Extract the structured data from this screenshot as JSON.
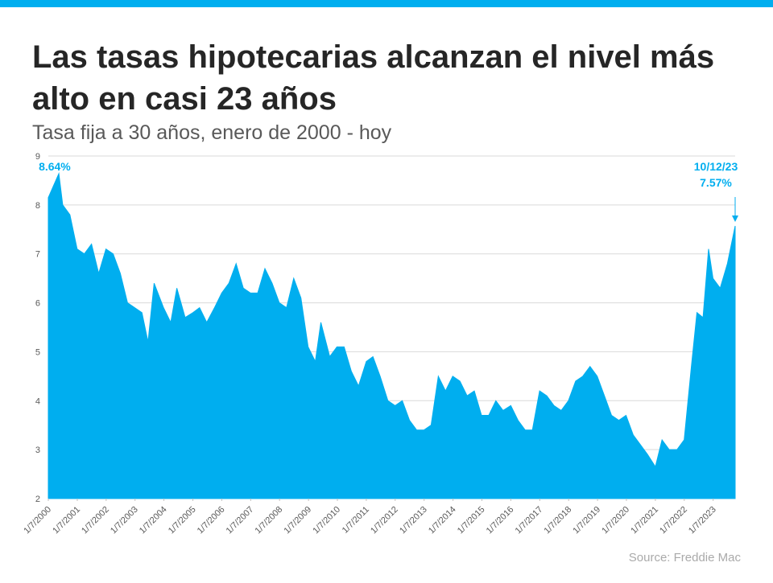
{
  "chart_data": {
    "type": "area",
    "title": "Las tasas hipotecarias alcanzan el nivel más alto en casi 23 años",
    "subtitle": "Tasa fija a 30 años, enero de 2000 - hoy",
    "source": "Source: Freddie Mac",
    "color": "#00aeef",
    "grid": true,
    "x": [
      "1/7/2000",
      "5/19/2000",
      "7/7/2000",
      "10/6/2000",
      "1/5/2001",
      "4/6/2001",
      "7/6/2001",
      "10/5/2001",
      "1/4/2002",
      "4/5/2002",
      "7/5/2002",
      "10/4/2002",
      "1/3/2003",
      "4/4/2003",
      "6/20/2003",
      "9/5/2003",
      "1/2/2004",
      "4/2/2004",
      "6/18/2004",
      "10/1/2004",
      "1/7/2005",
      "4/1/2005",
      "7/1/2005",
      "10/7/2005",
      "1/6/2006",
      "4/7/2006",
      "7/7/2006",
      "10/6/2006",
      "1/5/2007",
      "4/6/2007",
      "7/6/2007",
      "10/5/2007",
      "1/4/2008",
      "4/4/2008",
      "7/4/2008",
      "10/3/2008",
      "1/2/2009",
      "4/3/2009",
      "6/12/2009",
      "10/2/2009",
      "1/1/2010",
      "4/2/2010",
      "7/2/2010",
      "10/1/2010",
      "1/7/2011",
      "4/1/2011",
      "7/1/2011",
      "10/7/2011",
      "1/6/2012",
      "4/6/2012",
      "7/6/2012",
      "10/5/2012",
      "1/4/2013",
      "4/5/2013",
      "7/5/2013",
      "10/4/2013",
      "1/3/2014",
      "4/4/2014",
      "7/4/2014",
      "10/3/2014",
      "1/2/2015",
      "4/3/2015",
      "7/2/2015",
      "10/1/2015",
      "1/7/2016",
      "4/7/2016",
      "7/7/2016",
      "10/6/2016",
      "1/5/2017",
      "4/6/2017",
      "7/6/2017",
      "10/5/2017",
      "1/4/2018",
      "4/5/2018",
      "7/5/2018",
      "10/4/2018",
      "1/3/2019",
      "4/4/2019",
      "7/3/2019",
      "10/3/2019",
      "1/2/2020",
      "4/2/2020",
      "7/2/2020",
      "10/1/2020",
      "1/7/2021",
      "4/1/2021",
      "7/1/2021",
      "10/7/2021",
      "1/6/2022",
      "4/7/2022",
      "6/16/2022",
      "9/1/2022",
      "11/10/2022",
      "1/5/2023",
      "4/6/2023",
      "7/6/2023",
      "10/12/2023"
    ],
    "values": [
      8.15,
      8.64,
      8.0,
      7.8,
      7.1,
      7.0,
      7.2,
      6.6,
      7.1,
      7.0,
      6.6,
      6.0,
      5.9,
      5.8,
      5.2,
      6.4,
      5.9,
      5.6,
      6.3,
      5.7,
      5.8,
      5.9,
      5.6,
      5.9,
      6.2,
      6.4,
      6.8,
      6.3,
      6.2,
      6.2,
      6.7,
      6.4,
      6.0,
      5.9,
      6.5,
      6.1,
      5.1,
      4.8,
      5.6,
      4.9,
      5.1,
      5.1,
      4.6,
      4.3,
      4.8,
      4.9,
      4.5,
      4.0,
      3.9,
      4.0,
      3.6,
      3.4,
      3.4,
      3.5,
      4.5,
      4.2,
      4.5,
      4.4,
      4.1,
      4.2,
      3.7,
      3.7,
      4.0,
      3.8,
      3.9,
      3.6,
      3.4,
      3.4,
      4.2,
      4.1,
      3.9,
      3.8,
      4.0,
      4.4,
      4.5,
      4.7,
      4.5,
      4.1,
      3.7,
      3.6,
      3.7,
      3.3,
      3.1,
      2.9,
      2.65,
      3.2,
      3.0,
      3.0,
      3.2,
      4.7,
      5.8,
      5.7,
      7.1,
      6.5,
      6.3,
      6.8,
      7.57
    ],
    "xlim": [
      "1/7/2000",
      "10/12/2023"
    ],
    "xticks": [
      "1/7/2000",
      "1/7/2001",
      "1/7/2002",
      "1/7/2003",
      "1/7/2004",
      "1/7/2005",
      "1/7/2006",
      "1/7/2007",
      "1/7/2008",
      "1/7/2009",
      "1/7/2010",
      "1/7/2011",
      "1/7/2012",
      "1/7/2013",
      "1/7/2014",
      "1/7/2015",
      "1/7/2016",
      "1/7/2017",
      "1/7/2018",
      "1/7/2019",
      "1/7/2020",
      "1/7/2021",
      "1/7/2022",
      "1/7/2023"
    ],
    "ylim": [
      2,
      9
    ],
    "yticks": [
      2,
      3,
      4,
      5,
      6,
      7,
      8,
      9
    ],
    "annotations": [
      {
        "x": "5/19/2000",
        "value": 8.64,
        "label": "8.64%"
      },
      {
        "x": "10/12/2023",
        "date_label": "10/12/23",
        "value": 7.57,
        "label": "7.57%"
      }
    ]
  }
}
